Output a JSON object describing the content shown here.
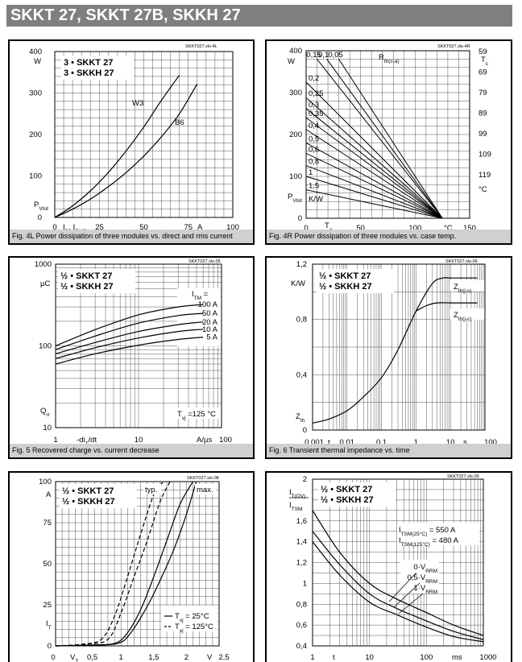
{
  "header": {
    "title": "SKKT 27, SKKT 27B, SKKH 27"
  },
  "chart_data": [
    {
      "id": "fig4L",
      "type": "line",
      "ref": "SKKT027.xls-4L",
      "caption": "Fig. 4L Power dissipation of three modules vs. direct and rms current",
      "legend": [
        "3 • SKKT 27",
        "3 • SKKH 27"
      ],
      "xlim": [
        0,
        100
      ],
      "ylim": [
        0,
        400
      ],
      "x_ticks": [
        "0",
        "25",
        "50",
        "75",
        "100"
      ],
      "y_ticks": [
        "0",
        "100",
        "200",
        "300",
        "400"
      ],
      "xlabel": "I_D, I_RMS",
      "xunit": "A",
      "ylabel": "P_Vtot",
      "yunit": "W",
      "series": [
        {
          "name": "W3",
          "x": [
            0,
            10,
            20,
            30,
            40,
            50,
            60,
            70
          ],
          "y": [
            0,
            28,
            64,
            108,
            160,
            218,
            283,
            343
          ]
        },
        {
          "name": "B6",
          "x": [
            0,
            10,
            20,
            30,
            40,
            50,
            60,
            70,
            80
          ],
          "y": [
            0,
            20,
            44,
            74,
            108,
            148,
            195,
            250,
            322
          ]
        }
      ]
    },
    {
      "id": "fig4R",
      "type": "line",
      "ref": "SKKT027.xls-4R",
      "caption": "Fig. 4R Power dissipation of three modules vs. case temp.",
      "xlim": [
        0,
        150
      ],
      "ylim": [
        0,
        400
      ],
      "x_ticks": [
        "0",
        "50",
        "100",
        "150"
      ],
      "y_ticks": [
        "0",
        "100",
        "200",
        "300",
        "400"
      ],
      "xlabel": "T_a",
      "xunit": "°C",
      "ylabel": "P_Vtot",
      "yunit": "W",
      "y2_ticks": [
        "59",
        "69",
        "79",
        "89",
        "99",
        "109",
        "119"
      ],
      "y2label": "T_c",
      "y2unit": "°C",
      "rth_title": "R_th(c-a)",
      "rth_unit": "K/W",
      "converge_x": 125,
      "series": [
        {
          "name": "0,15",
          "start_x": 10,
          "start_y": 380
        },
        {
          "name": "0,1",
          "start_x": 19,
          "start_y": 380
        },
        {
          "name": "0,05",
          "start_x": 30,
          "start_y": 380
        },
        {
          "name": "0,2",
          "start_x": 0,
          "start_y": 325
        },
        {
          "name": "0,25",
          "start_x": 0,
          "start_y": 288
        },
        {
          "name": "0,3",
          "start_x": 0,
          "start_y": 262
        },
        {
          "name": "0,35",
          "start_x": 0,
          "start_y": 240
        },
        {
          "name": "0,4",
          "start_x": 0,
          "start_y": 212
        },
        {
          "name": "0,5",
          "start_x": 0,
          "start_y": 180
        },
        {
          "name": "0,6",
          "start_x": 0,
          "start_y": 155
        },
        {
          "name": "0,8",
          "start_x": 0,
          "start_y": 126
        },
        {
          "name": "1",
          "start_x": 0,
          "start_y": 100
        },
        {
          "name": "1,5",
          "start_x": 0,
          "start_y": 68
        }
      ]
    },
    {
      "id": "fig5",
      "type": "line",
      "ref": "SKKT027.xls-05",
      "caption": "Fig. 5 Recovered charge vs. current decrease",
      "legend": [
        "½ • SKKT 27",
        "½ • SKKH 27"
      ],
      "xscale": "log",
      "yscale": "log",
      "xlim": [
        1,
        100
      ],
      "ylim": [
        10,
        1000
      ],
      "x_ticks": [
        "1",
        "10",
        "100"
      ],
      "y_ticks": [
        "10",
        "100",
        "1000"
      ],
      "xlabel": "-di_T/dt",
      "xunit": "A/µs",
      "ylabel": "Q_rr",
      "yunit": "µC",
      "group_label": "I_TM =",
      "condition": "T_vj =125 °C",
      "series": [
        {
          "name": "100 A",
          "x": [
            1,
            3,
            10,
            30,
            60
          ],
          "y": [
            100,
            158,
            240,
            300,
            320
          ]
        },
        {
          "name": "50 A",
          "x": [
            1,
            3,
            10,
            30,
            60
          ],
          "y": [
            90,
            132,
            190,
            235,
            250
          ]
        },
        {
          "name": "20 A",
          "x": [
            1,
            3,
            10,
            30,
            60
          ],
          "y": [
            80,
            110,
            150,
            182,
            196
          ]
        },
        {
          "name": "10 A",
          "x": [
            1,
            3,
            10,
            30,
            60
          ],
          "y": [
            70,
            95,
            125,
            150,
            160
          ]
        },
        {
          "name": "5 A",
          "x": [
            1,
            3,
            10,
            30,
            60
          ],
          "y": [
            60,
            80,
            102,
            120,
            128
          ]
        }
      ]
    },
    {
      "id": "fig6",
      "type": "line",
      "ref": "SKKT027.xls-06",
      "caption": "Fig. 6 Transient thermal impedance vs. time",
      "legend": [
        "½ • SKKT 27",
        "½ • SKKH 27"
      ],
      "xscale": "log",
      "xlim": [
        0.001,
        100
      ],
      "ylim": [
        0,
        1.2
      ],
      "x_ticks": [
        "0,001",
        "0,01",
        "0,1",
        "1",
        "10",
        "100"
      ],
      "y_ticks": [
        "0",
        "0,4",
        "0,8",
        "1,2"
      ],
      "xlabel": "t",
      "xunit": "s",
      "ylabel": "Z_th",
      "yunit": "K/W",
      "series": [
        {
          "name": "Z_th(j-s)",
          "x": [
            0.001,
            0.003,
            0.01,
            0.03,
            0.1,
            0.3,
            1,
            3,
            6,
            10,
            30,
            60
          ],
          "y": [
            0.05,
            0.08,
            0.14,
            0.24,
            0.38,
            0.58,
            0.86,
            1.06,
            1.1,
            1.1,
            1.1,
            1.1
          ]
        },
        {
          "name": "Z_th(j-c)",
          "x": [
            1,
            2,
            4,
            10,
            30,
            60
          ],
          "y": [
            0.86,
            0.9,
            0.92,
            0.92,
            0.92,
            0.92
          ]
        }
      ]
    },
    {
      "id": "fig7",
      "type": "line",
      "ref": "SKKT027.xls-08",
      "legend": [
        "½ • SKKT 27",
        "½ • SKKH 27"
      ],
      "xlim": [
        0,
        2.5
      ],
      "ylim": [
        0,
        100
      ],
      "x_ticks": [
        "0",
        "0,5",
        "1",
        "1,5",
        "2",
        "2,5"
      ],
      "y_ticks": [
        "0",
        "25",
        "50",
        "75",
        "100"
      ],
      "xlabel": "V_T",
      "xunit": "V",
      "ylabel": "I_T",
      "yunit": "A",
      "annot_typ": "typ.",
      "annot_max": "max.",
      "series": [
        {
          "name": "T_vj = 25°C",
          "style": "solid-typ",
          "x": [
            0,
            0.5,
            0.9,
            1.1,
            1.3,
            1.5,
            1.7,
            1.9,
            2.1
          ],
          "y": [
            0,
            0.5,
            1.5,
            8,
            22,
            42,
            64,
            86,
            100
          ]
        },
        {
          "name": "T_vj = 25°C max",
          "style": "solid-max",
          "x": [
            0,
            0.5,
            0.95,
            1.15,
            1.4,
            1.6,
            1.8,
            2.0,
            2.15
          ],
          "y": [
            0,
            0.5,
            1.5,
            8,
            24,
            40,
            58,
            80,
            100
          ]
        },
        {
          "name": "T_vj = 125°C",
          "style": "dashed-typ",
          "x": [
            0,
            0.4,
            0.7,
            0.9,
            1.1,
            1.3,
            1.5,
            1.65
          ],
          "y": [
            0,
            1,
            4,
            18,
            42,
            68,
            92,
            100
          ]
        },
        {
          "name": "T_vj = 125°C max",
          "style": "dashed-max",
          "x": [
            0,
            0.45,
            0.8,
            1.0,
            1.2,
            1.4,
            1.6,
            1.75
          ],
          "y": [
            0,
            1,
            4,
            20,
            42,
            64,
            88,
            100
          ]
        }
      ],
      "legend_lines": [
        "T_vj = 25°C",
        "T_vj = 125°C"
      ]
    },
    {
      "id": "fig8",
      "type": "line",
      "ref": "SKKT027.xls-09",
      "legend": [
        "½ • SKKT 27",
        "½ • SKKH 27"
      ],
      "xscale": "log",
      "xlim": [
        1,
        1000
      ],
      "ylim": [
        0.4,
        2
      ],
      "x_ticks": [
        "1",
        "10",
        "100",
        "1000"
      ],
      "y_ticks": [
        "0,4",
        "0,6",
        "0,8",
        "1",
        "1,2",
        "1,4",
        "1,6",
        "2"
      ],
      "xlabel": "t",
      "xunit": "ms",
      "ylabel": "I_T(OV) / I_TSM",
      "itsm": [
        "I_TSM(25°C) = 550 A",
        "I_TSM(125°C) = 480 A"
      ],
      "series": [
        {
          "name": "0·V_RRM",
          "x": [
            1,
            3,
            10,
            30,
            100,
            300,
            1000
          ],
          "y": [
            1.7,
            1.3,
            1.0,
            0.85,
            0.72,
            0.6,
            0.5
          ]
        },
        {
          "name": "0,5·V_RRM",
          "x": [
            1,
            3,
            10,
            30,
            100,
            300,
            1000
          ],
          "y": [
            1.5,
            1.18,
            0.9,
            0.76,
            0.64,
            0.54,
            0.46
          ]
        },
        {
          "name": "1·V_RRM",
          "x": [
            1,
            3,
            10,
            30,
            100,
            300,
            1000
          ],
          "y": [
            1.4,
            1.08,
            0.82,
            0.7,
            0.58,
            0.49,
            0.44
          ]
        }
      ]
    }
  ]
}
